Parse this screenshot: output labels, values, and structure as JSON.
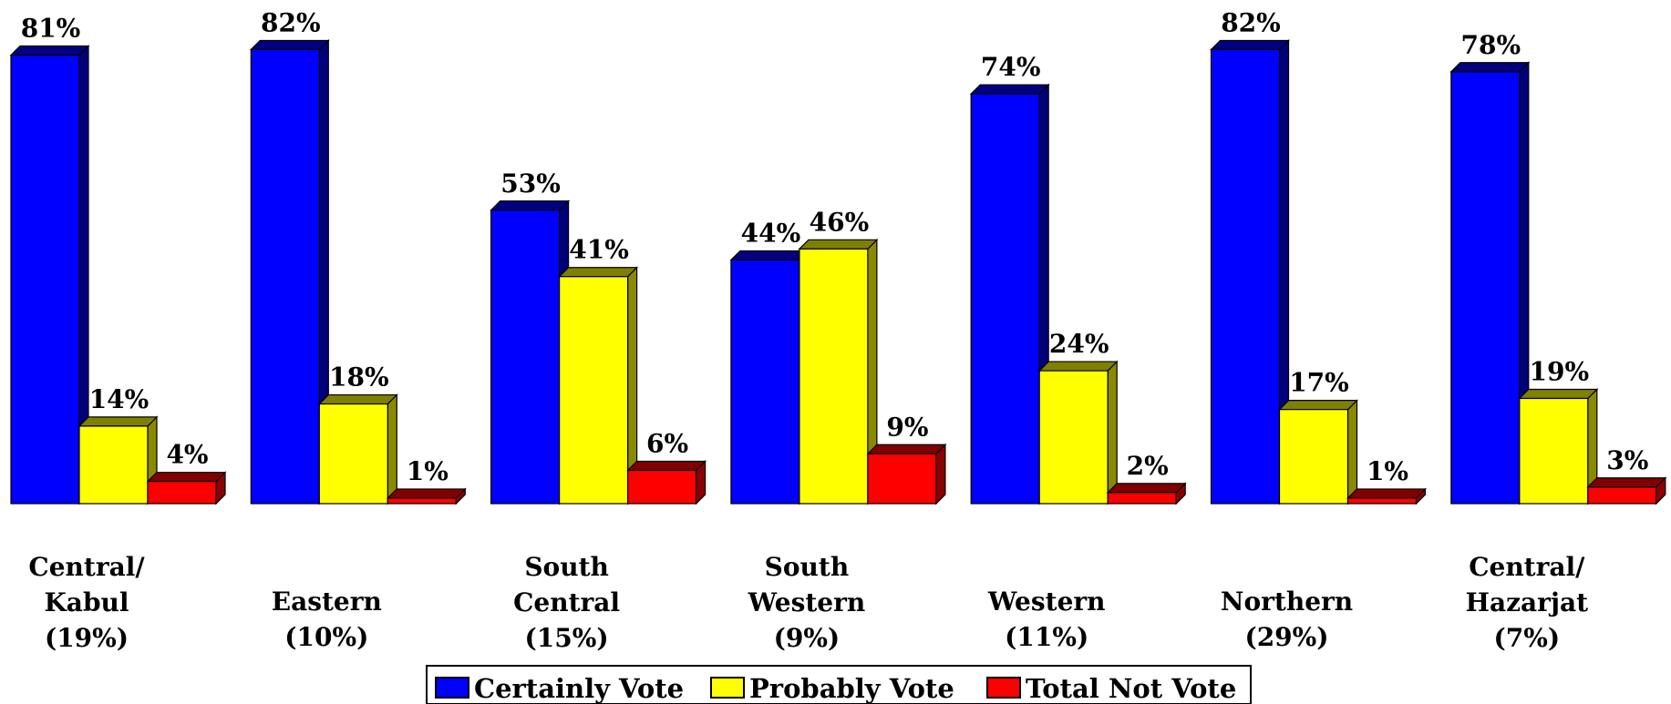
{
  "chart_data": {
    "type": "bar",
    "categories": [
      [
        "Central/",
        "Kabul",
        "(19%)"
      ],
      [
        "Eastern",
        "(10%)"
      ],
      [
        "South",
        "Central",
        "(15%)"
      ],
      [
        "South",
        "Western",
        "(9%)"
      ],
      [
        "Western",
        "(11%)"
      ],
      [
        "Northern",
        "(29%)"
      ],
      [
        "Central/",
        "Hazarjat",
        "(7%)"
      ]
    ],
    "series": [
      {
        "name": "Certainly Vote",
        "color": "#0000ff",
        "values": [
          81,
          82,
          53,
          44,
          74,
          82,
          78
        ],
        "labels": [
          "81%",
          "82%",
          "53%",
          "44%",
          "74%",
          "82%",
          "78%"
        ]
      },
      {
        "name": "Probably Vote",
        "color": "#ffff00",
        "values": [
          14,
          18,
          41,
          46,
          24,
          17,
          19
        ],
        "labels": [
          "14%",
          "18%",
          "41%",
          "46%",
          "24%",
          "17%",
          "19%"
        ]
      },
      {
        "name": "Total Not Vote",
        "color": "#ff0000",
        "values": [
          4,
          1,
          6,
          9,
          2,
          1,
          3
        ],
        "labels": [
          "4%",
          "1%",
          "6%",
          "9%",
          "2%",
          "1%",
          "3%"
        ]
      }
    ],
    "ylim": [
      0,
      100
    ],
    "grid": false,
    "legend": "bottom-center"
  }
}
